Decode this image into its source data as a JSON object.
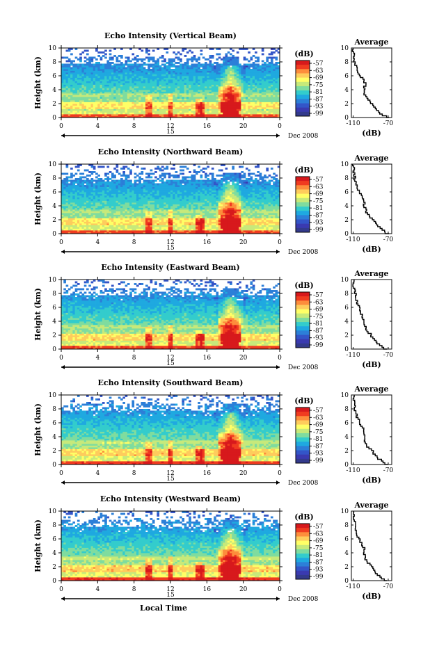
{
  "colorbar": {
    "unit": "(dB)",
    "labels": [
      "-57",
      "-63",
      "-69",
      "-75",
      "-81",
      "-87",
      "-93",
      "-99"
    ],
    "colors": [
      "#d7191c",
      "#f03b20",
      "#fd8d3c",
      "#fecc5c",
      "#ffff66",
      "#c7e97a",
      "#7fdc9f",
      "#33cccc",
      "#1fa9e0",
      "#2c7fd8",
      "#3355c8",
      "#3a3ab0",
      "#333a8c"
    ]
  },
  "x_axis": {
    "ticks": [
      "0",
      "4",
      "8",
      "12",
      "16",
      "20",
      "0"
    ],
    "date_label": "15",
    "month_label": "Dec 2008",
    "xlabel": "Local Time"
  },
  "y_axis": {
    "ylabel": "Height (km)",
    "ticks": [
      "0",
      "2",
      "4",
      "6",
      "8",
      "10"
    ]
  },
  "average_panel": {
    "title": "Average",
    "xlabel": "(dB)",
    "xticks": [
      "-110",
      "-70"
    ]
  },
  "chart_data": [
    {
      "type": "heatmap",
      "title": "Echo Intensity (Vertical Beam)",
      "xlabel": "Local Time",
      "ylabel": "Height (km)",
      "xlim": [
        0,
        24
      ],
      "ylim": [
        0,
        10
      ],
      "average_profile": {
        "height_km": [
          0,
          1,
          2,
          3,
          4,
          5,
          6,
          7,
          8,
          9,
          10
        ],
        "db": [
          -70,
          -82,
          -88,
          -95,
          -98,
          -96,
          -101,
          -106,
          -108,
          -109,
          -110
        ]
      }
    },
    {
      "type": "heatmap",
      "title": "Echo Intensity (Northward Beam)",
      "xlabel": "Local Time",
      "ylabel": "Height (km)",
      "xlim": [
        0,
        24
      ],
      "ylim": [
        0,
        10
      ],
      "average_profile": {
        "height_km": [
          0,
          1,
          2,
          3,
          4,
          5,
          6,
          7,
          8,
          9,
          10
        ],
        "db": [
          -70,
          -80,
          -87,
          -94,
          -97,
          -98,
          -102,
          -106,
          -108,
          -109,
          -110
        ]
      }
    },
    {
      "type": "heatmap",
      "title": "Echo Intensity (Eastward Beam)",
      "xlabel": "Local Time",
      "ylabel": "Height (km)",
      "xlim": [
        0,
        24
      ],
      "ylim": [
        0,
        10
      ],
      "average_profile": {
        "height_km": [
          0,
          1,
          2,
          3,
          4,
          5,
          6,
          7,
          8,
          9,
          10
        ],
        "db": [
          -72,
          -82,
          -89,
          -95,
          -98,
          -100,
          -103,
          -106,
          -107,
          -109,
          -110
        ]
      }
    },
    {
      "type": "heatmap",
      "title": "Echo Intensity (Southward Beam)",
      "xlabel": "Local Time",
      "ylabel": "Height (km)",
      "xlim": [
        0,
        24
      ],
      "ylim": [
        0,
        10
      ],
      "average_profile": {
        "height_km": [
          0,
          1,
          2,
          3,
          4,
          5,
          6,
          7,
          8,
          9,
          10
        ],
        "db": [
          -71,
          -81,
          -88,
          -96,
          -98,
          -97,
          -102,
          -106,
          -108,
          -109,
          -110
        ]
      }
    },
    {
      "type": "heatmap",
      "title": "Echo Intensity (Westward Beam)",
      "xlabel": "Local Time",
      "ylabel": "Height (km)",
      "xlim": [
        0,
        24
      ],
      "ylim": [
        0,
        10
      ],
      "average_profile": {
        "height_km": [
          0,
          1,
          2,
          3,
          4,
          5,
          6,
          7,
          8,
          9,
          10
        ],
        "db": [
          -72,
          -82,
          -88,
          -95,
          -97,
          -98,
          -103,
          -107,
          -108,
          -109,
          -110
        ]
      }
    }
  ]
}
